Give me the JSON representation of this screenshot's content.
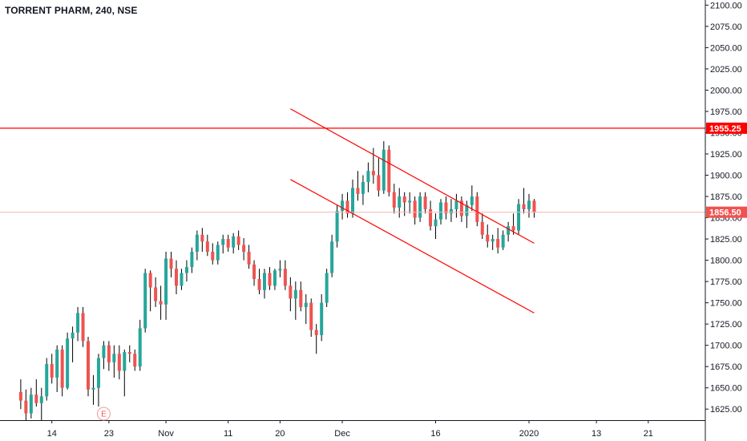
{
  "header": {
    "title": "TORRENT PHARM, 240, NSE"
  },
  "chart_data": {
    "type": "candlestick",
    "title": "TORRENT PHARM, 240, NSE",
    "ylim": [
      1612,
      2106
    ],
    "y_ticks": [
      1625,
      1650,
      1675,
      1700,
      1725,
      1750,
      1775,
      1800,
      1825,
      1850,
      1875,
      1900,
      1925,
      1950,
      1975,
      2000,
      2025,
      2050,
      2075,
      2100
    ],
    "y_tick_labels": [
      "1625.00",
      "1650.00",
      "1675.00",
      "1700.00",
      "1725.00",
      "1750.00",
      "1775.00",
      "1800.00",
      "1825.00",
      "1850.00",
      "1875.00",
      "1900.00",
      "1925.00",
      "1950.00",
      "1975.00",
      "2000.00",
      "2025.00",
      "2050.00",
      "2075.00",
      "2100.00"
    ],
    "x_range_index": [
      -4,
      132
    ],
    "x_ticks": [
      {
        "label": "14",
        "index": 6
      },
      {
        "label": "23",
        "index": 17
      },
      {
        "label": "Nov",
        "index": 28
      },
      {
        "label": "11",
        "index": 40
      },
      {
        "label": "20",
        "index": 50
      },
      {
        "label": "Dec",
        "index": 62
      },
      {
        "label": "16",
        "index": 80
      },
      {
        "label": "2020",
        "index": 98
      },
      {
        "label": "13",
        "index": 111
      },
      {
        "label": "21",
        "index": 121
      }
    ],
    "colors": {
      "up": "#26a69a",
      "down": "#ef5350",
      "line": "#ff0000",
      "price_line": "#f4b6b5",
      "axis_text": "#131722"
    },
    "horizontal_line": {
      "value": 1955.25,
      "label": "1955.25"
    },
    "last_price": {
      "value": 1856.5,
      "label": "1856.50"
    },
    "channel_lines": [
      {
        "from": [
          52,
          1978
        ],
        "to": [
          99,
          1820
        ]
      },
      {
        "from": [
          52,
          1895
        ],
        "to": [
          99,
          1738
        ]
      }
    ],
    "event_marker": {
      "label": "E",
      "index": 16
    },
    "candles": [
      [
        1645,
        1660,
        1625,
        1635
      ],
      [
        1635,
        1648,
        1612,
        1620
      ],
      [
        1620,
        1650,
        1614,
        1642
      ],
      [
        1642,
        1660,
        1628,
        1632
      ],
      [
        1632,
        1650,
        1612,
        1640
      ],
      [
        1640,
        1685,
        1635,
        1678
      ],
      [
        1678,
        1690,
        1655,
        1662
      ],
      [
        1662,
        1700,
        1645,
        1695
      ],
      [
        1695,
        1700,
        1640,
        1650
      ],
      [
        1650,
        1715,
        1648,
        1708
      ],
      [
        1708,
        1722,
        1680,
        1715
      ],
      [
        1715,
        1745,
        1705,
        1738
      ],
      [
        1738,
        1745,
        1698,
        1705
      ],
      [
        1705,
        1710,
        1640,
        1648
      ],
      [
        1648,
        1665,
        1630,
        1650
      ],
      [
        1650,
        1690,
        1628,
        1685
      ],
      [
        1685,
        1705,
        1672,
        1700
      ],
      [
        1700,
        1705,
        1670,
        1680
      ],
      [
        1680,
        1700,
        1662,
        1690
      ],
      [
        1690,
        1700,
        1660,
        1670
      ],
      [
        1670,
        1695,
        1640,
        1692
      ],
      [
        1692,
        1700,
        1680,
        1690
      ],
      [
        1690,
        1695,
        1670,
        1675
      ],
      [
        1675,
        1730,
        1670,
        1720
      ],
      [
        1720,
        1790,
        1715,
        1785
      ],
      [
        1785,
        1788,
        1740,
        1768
      ],
      [
        1768,
        1780,
        1745,
        1752
      ],
      [
        1752,
        1770,
        1730,
        1748
      ],
      [
        1748,
        1810,
        1730,
        1802
      ],
      [
        1802,
        1810,
        1780,
        1790
      ],
      [
        1790,
        1800,
        1760,
        1770
      ],
      [
        1770,
        1790,
        1765,
        1785
      ],
      [
        1785,
        1800,
        1775,
        1792
      ],
      [
        1792,
        1815,
        1785,
        1810
      ],
      [
        1810,
        1835,
        1800,
        1830
      ],
      [
        1830,
        1838,
        1810,
        1822
      ],
      [
        1822,
        1830,
        1805,
        1810
      ],
      [
        1810,
        1820,
        1795,
        1800
      ],
      [
        1800,
        1822,
        1795,
        1818
      ],
      [
        1818,
        1830,
        1808,
        1825
      ],
      [
        1825,
        1830,
        1810,
        1815
      ],
      [
        1815,
        1832,
        1808,
        1828
      ],
      [
        1828,
        1835,
        1812,
        1818
      ],
      [
        1818,
        1826,
        1800,
        1810
      ],
      [
        1810,
        1818,
        1790,
        1795
      ],
      [
        1795,
        1800,
        1770,
        1778
      ],
      [
        1778,
        1790,
        1760,
        1765
      ],
      [
        1765,
        1790,
        1755,
        1785
      ],
      [
        1785,
        1792,
        1765,
        1770
      ],
      [
        1770,
        1790,
        1765,
        1788
      ],
      [
        1788,
        1800,
        1780,
        1790
      ],
      [
        1790,
        1800,
        1765,
        1770
      ],
      [
        1770,
        1780,
        1740,
        1755
      ],
      [
        1755,
        1775,
        1730,
        1765
      ],
      [
        1765,
        1775,
        1740,
        1745
      ],
      [
        1745,
        1760,
        1725,
        1750
      ],
      [
        1750,
        1755,
        1710,
        1718
      ],
      [
        1718,
        1725,
        1690,
        1712
      ],
      [
        1712,
        1760,
        1705,
        1750
      ],
      [
        1750,
        1790,
        1745,
        1785
      ],
      [
        1785,
        1830,
        1780,
        1822
      ],
      [
        1822,
        1865,
        1815,
        1858
      ],
      [
        1858,
        1878,
        1848,
        1870
      ],
      [
        1870,
        1880,
        1850,
        1855
      ],
      [
        1855,
        1895,
        1850,
        1885
      ],
      [
        1885,
        1905,
        1870,
        1878
      ],
      [
        1878,
        1900,
        1865,
        1892
      ],
      [
        1892,
        1915,
        1880,
        1905
      ],
      [
        1905,
        1932,
        1890,
        1900
      ],
      [
        1900,
        1920,
        1875,
        1882
      ],
      [
        1882,
        1940,
        1878,
        1930
      ],
      [
        1930,
        1935,
        1875,
        1880
      ],
      [
        1880,
        1890,
        1855,
        1862
      ],
      [
        1862,
        1885,
        1850,
        1875
      ],
      [
        1875,
        1880,
        1852,
        1868
      ],
      [
        1868,
        1880,
        1855,
        1870
      ],
      [
        1870,
        1875,
        1842,
        1850
      ],
      [
        1850,
        1880,
        1845,
        1875
      ],
      [
        1875,
        1880,
        1855,
        1860
      ],
      [
        1860,
        1870,
        1835,
        1840
      ],
      [
        1840,
        1855,
        1825,
        1848
      ],
      [
        1848,
        1872,
        1842,
        1868
      ],
      [
        1868,
        1875,
        1848,
        1855
      ],
      [
        1855,
        1872,
        1845,
        1860
      ],
      [
        1860,
        1878,
        1850,
        1870
      ],
      [
        1870,
        1875,
        1845,
        1852
      ],
      [
        1852,
        1870,
        1838,
        1865
      ],
      [
        1865,
        1888,
        1858,
        1875
      ],
      [
        1875,
        1880,
        1840,
        1845
      ],
      [
        1845,
        1855,
        1825,
        1830
      ],
      [
        1830,
        1842,
        1815,
        1822
      ],
      [
        1822,
        1830,
        1812,
        1825
      ],
      [
        1825,
        1838,
        1808,
        1815
      ],
      [
        1815,
        1835,
        1812,
        1830
      ],
      [
        1830,
        1845,
        1822,
        1840
      ],
      [
        1840,
        1855,
        1830,
        1835
      ],
      [
        1835,
        1872,
        1830,
        1866
      ],
      [
        1866,
        1885,
        1855,
        1860
      ],
      [
        1860,
        1878,
        1850,
        1870
      ],
      [
        1870,
        1872,
        1850,
        1856
      ]
    ]
  }
}
